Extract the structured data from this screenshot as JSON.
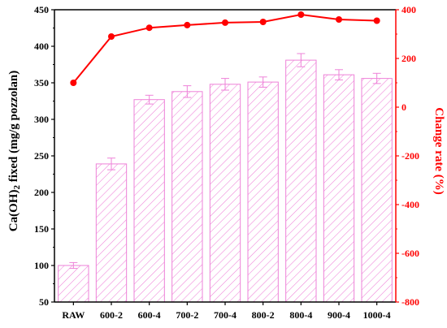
{
  "chart_data": {
    "type": "bar",
    "categories": [
      "RAW",
      "600-2",
      "600-4",
      "700-2",
      "700-4",
      "800-2",
      "800-4",
      "900-4",
      "1000-4"
    ],
    "y_axis_title": "Ca(OH)2 fixed (mg/g pozzolan)",
    "y2_axis_title": "Change rate (%)",
    "ylim": [
      50,
      450
    ],
    "yticks": [
      "50",
      "100",
      "150",
      "200",
      "250",
      "300",
      "350",
      "400",
      "450"
    ],
    "y2lim": [
      -800,
      400
    ],
    "y2ticks": [
      "-800",
      "-600",
      "-400",
      "-200",
      "0",
      "200",
      "400"
    ],
    "series": [
      {
        "axis": "left",
        "kind": "bar",
        "values": [
          100,
          239,
          327,
          338,
          348,
          351,
          381,
          361,
          356
        ],
        "errors": [
          4,
          8,
          6,
          8,
          8,
          7,
          9,
          7,
          7
        ]
      },
      {
        "axis": "right",
        "kind": "line",
        "values": [
          100,
          290,
          326,
          337,
          347,
          350,
          380,
          360,
          355
        ]
      }
    ],
    "colors": {
      "bars": "#ee82d8",
      "line": "#ff0000",
      "right_axis": "#ff0000",
      "left_axis": "#000000"
    }
  }
}
